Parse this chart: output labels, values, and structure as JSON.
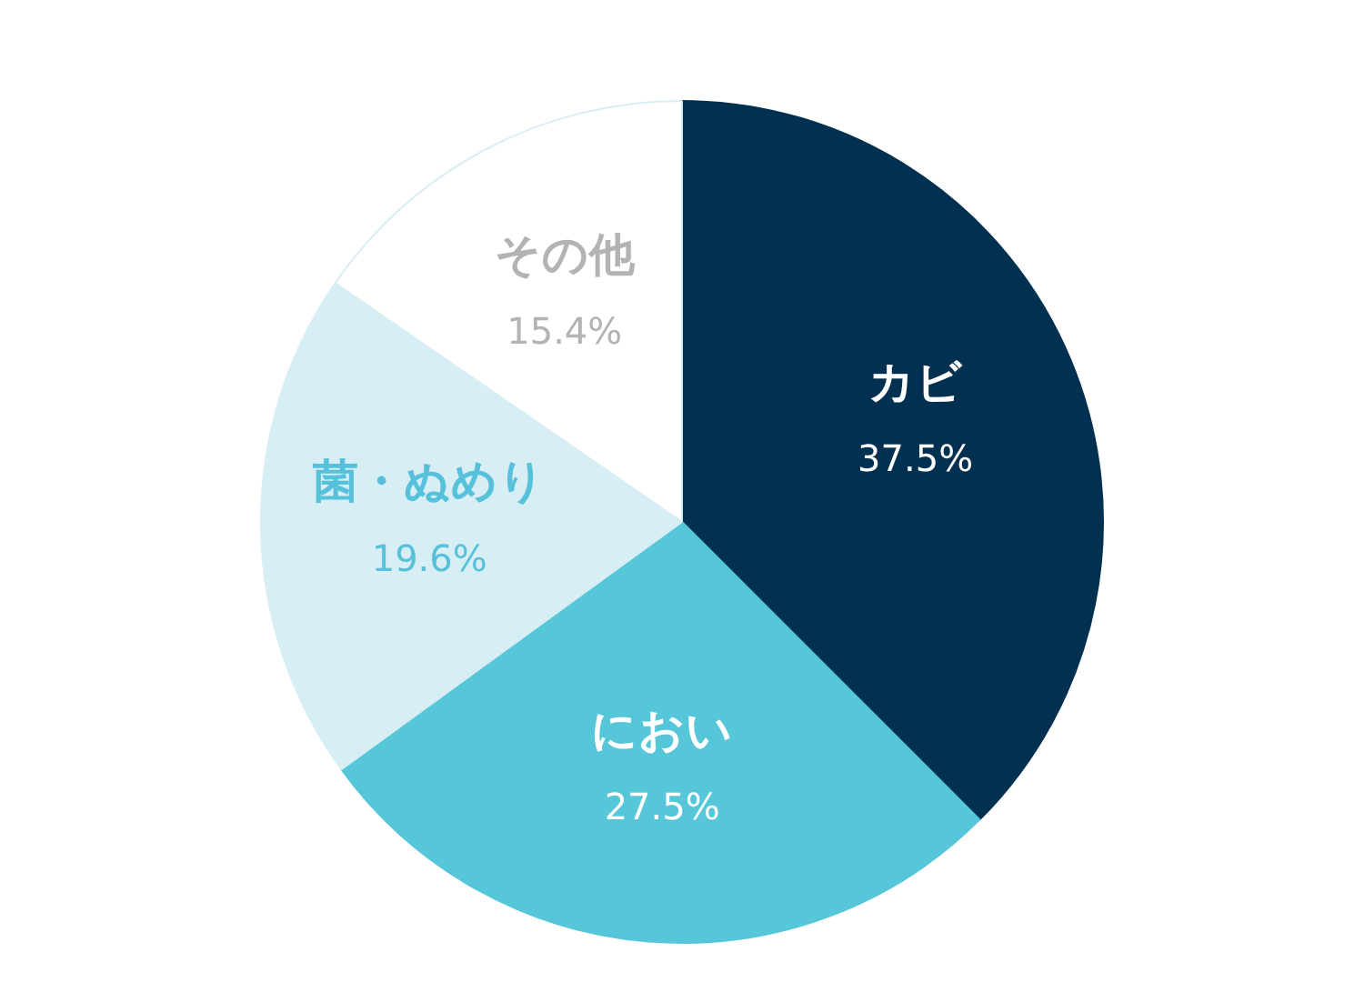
{
  "chart_data": {
    "type": "pie",
    "categories": [
      "カビ",
      "におい",
      "菌・ぬめり",
      "その他"
    ],
    "values": [
      37.5,
      27.5,
      19.6,
      15.4
    ],
    "colors": [
      "#023050",
      "#56c6d9",
      "#d6eef4",
      "#ffffff"
    ],
    "value_labels": [
      "37.5%",
      "27.5%",
      "19.6%",
      "15.4%"
    ],
    "legend": false
  }
}
